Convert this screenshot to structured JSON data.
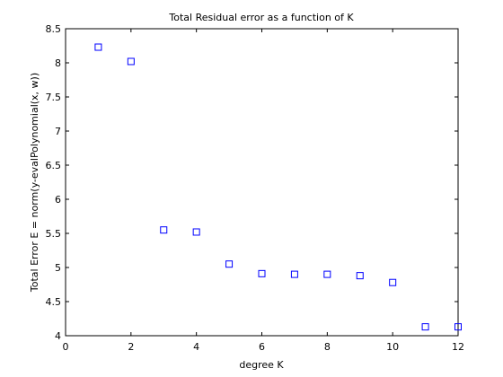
{
  "chart_data": {
    "type": "scatter",
    "title": "Total Residual error as a function of K",
    "xlabel": "degree K",
    "ylabel": "Total Error E = norm(y-evalPolynomial(x, w))",
    "xlim": [
      0,
      12
    ],
    "ylim": [
      4,
      8.5
    ],
    "xticks": [
      0,
      2,
      4,
      6,
      8,
      10,
      12
    ],
    "yticks": [
      4,
      4.5,
      5,
      5.5,
      6,
      6.5,
      7,
      7.5,
      8,
      8.5
    ],
    "xtick_labels": [
      "0",
      "2",
      "4",
      "6",
      "8",
      "10",
      "12"
    ],
    "ytick_labels": [
      "4",
      "4.5",
      "5",
      "5.5",
      "6",
      "6.5",
      "7",
      "7.5",
      "8",
      "8.5"
    ],
    "grid": false,
    "marker": "square",
    "marker_color": "#0000ff",
    "series": [
      {
        "x": [
          1,
          2,
          3,
          4,
          5,
          6,
          7,
          8,
          9,
          10,
          11,
          12
        ],
        "y": [
          8.23,
          8.02,
          5.55,
          5.52,
          5.05,
          4.91,
          4.9,
          4.9,
          4.88,
          4.78,
          4.13,
          4.13
        ]
      }
    ]
  }
}
